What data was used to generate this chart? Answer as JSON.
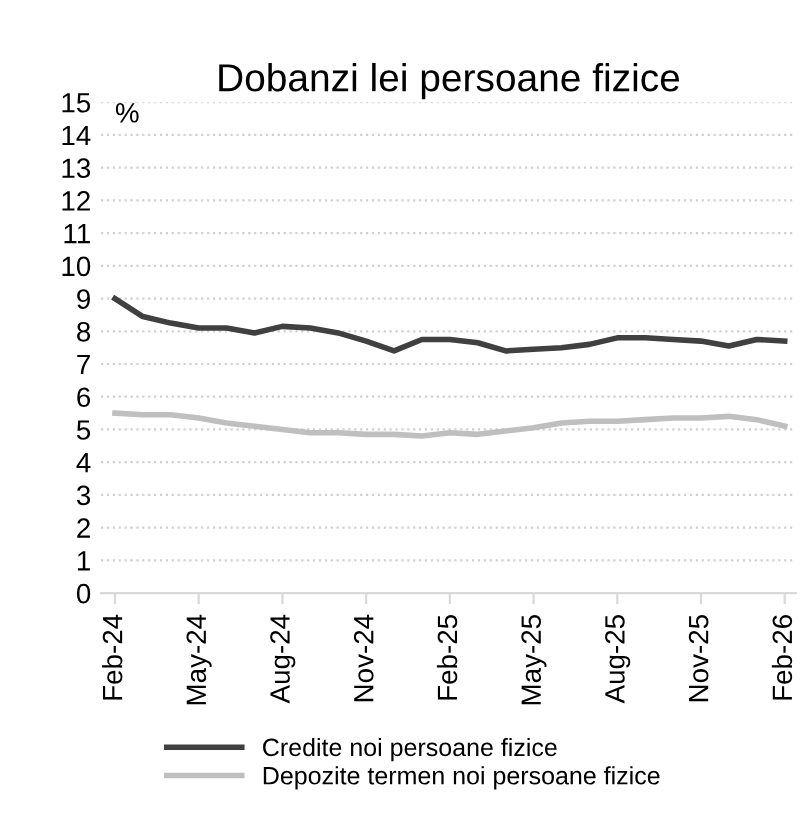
{
  "chart_data": {
    "type": "line",
    "title": "Dobanzi lei persoane fizice",
    "annotations": [
      "%"
    ],
    "categories": [
      "Feb-24",
      null,
      null,
      "May-24",
      null,
      null,
      "Aug-24",
      null,
      null,
      "Nov-24",
      null,
      null,
      "Feb-25",
      null,
      null,
      "May-25",
      null,
      null,
      "Aug-25",
      null,
      null,
      "Nov-25",
      null,
      null,
      "Feb-26"
    ],
    "series": [
      {
        "name": "Credite noi persoane fizice",
        "color": "#404040",
        "values": [
          9.0,
          8.45,
          8.25,
          8.1,
          8.1,
          7.95,
          8.15,
          8.1,
          7.95,
          7.7,
          7.4,
          7.75,
          7.75,
          7.65,
          7.4,
          7.45,
          7.5,
          7.6,
          7.8,
          7.8,
          7.75,
          7.7,
          7.55,
          7.75,
          7.7
        ]
      },
      {
        "name": "Depozite termen noi persoane fizice",
        "color": "#bfbfbf",
        "values": [
          5.5,
          5.45,
          5.45,
          5.35,
          5.2,
          5.1,
          5.0,
          4.9,
          4.9,
          4.85,
          4.85,
          4.8,
          4.9,
          4.85,
          4.95,
          5.05,
          5.2,
          5.25,
          5.25,
          5.3,
          5.35,
          5.35,
          5.4,
          5.3,
          5.1
        ]
      }
    ],
    "ylim": [
      0,
      15
    ],
    "yticks": [
      0,
      1,
      2,
      3,
      4,
      5,
      6,
      7,
      8,
      9,
      10,
      11,
      12,
      13,
      14,
      15
    ],
    "grid": "y",
    "legend": "bottom",
    "line_style": "solid",
    "marker": "none"
  }
}
